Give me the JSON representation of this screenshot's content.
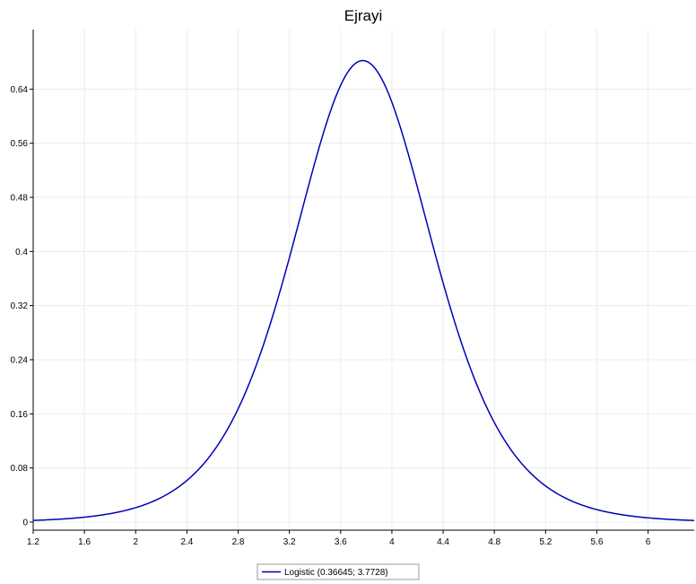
{
  "chart_data": {
    "type": "line",
    "title": "Ejrayi",
    "xlabel": "",
    "ylabel": "",
    "xlim": [
      1.2,
      6.36
    ],
    "ylim": [
      -0.012,
      0.728
    ],
    "x_ticks": [
      "1.2",
      "1.6",
      "2",
      "2.4",
      "2.8",
      "3.2",
      "3.6",
      "4",
      "4.4",
      "4.8",
      "5.2",
      "5.6",
      "6"
    ],
    "y_ticks": [
      "0",
      "0.08",
      "0.16",
      "0.24",
      "0.32",
      "0.4",
      "0.48",
      "0.56",
      "0.64"
    ],
    "grid": true,
    "legend_position": "bottom-center",
    "series": [
      {
        "name": "Logistic  (0.36645; 3.7728)",
        "color": "#0000b4",
        "distribution": "logistic",
        "params": {
          "scale": 0.36645,
          "location": 3.7728
        },
        "x": [
          1.2,
          1.4,
          1.6,
          1.8,
          2.0,
          2.2,
          2.4,
          2.6,
          2.8,
          3.0,
          3.2,
          3.4,
          3.6,
          3.7728,
          4.0,
          4.2,
          4.4,
          4.6,
          4.8,
          5.0,
          5.2,
          5.4,
          5.6,
          5.8,
          6.0,
          6.2,
          6.36
        ],
        "y": [
          0.003,
          0.005,
          0.007,
          0.012,
          0.021,
          0.035,
          0.058,
          0.094,
          0.148,
          0.227,
          0.331,
          0.457,
          0.601,
          0.682,
          0.604,
          0.475,
          0.341,
          0.227,
          0.143,
          0.087,
          0.052,
          0.03,
          0.018,
          0.01,
          0.006,
          0.004,
          0.002
        ]
      }
    ]
  }
}
